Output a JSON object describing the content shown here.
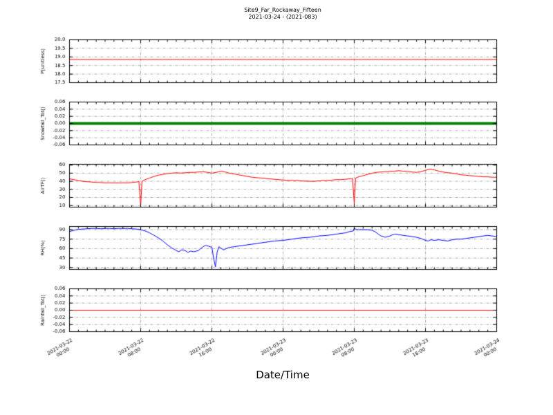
{
  "chart_data": {
    "type": "line",
    "title": "Site9_Far_Rockaway_Fifteen",
    "subtitle": "2021-03-24 - (2021-083)",
    "xlabel": "Date/Time",
    "x_unit": "hours since 2021-03-22 00:00",
    "xlim": [
      0,
      48
    ],
    "minor_tick_step": 1,
    "grid": true,
    "legend": "none",
    "xticks": [
      {
        "t": 0,
        "label": "2021-03-22 00:00"
      },
      {
        "t": 8,
        "label": "2021-03-22 08:00"
      },
      {
        "t": 16,
        "label": "2021-03-22 16:00"
      },
      {
        "t": 24,
        "label": "2021-03-23 00:00"
      },
      {
        "t": 32,
        "label": "2021-03-23 08:00"
      },
      {
        "t": 40,
        "label": "2021-03-23 16:00"
      },
      {
        "t": 48,
        "label": "2021-03-24 00:00"
      }
    ],
    "panels": [
      {
        "ylabel": "P(unitless)",
        "ylim": [
          17.5,
          20.0
        ],
        "yticks": [
          {
            "v": 20.0,
            "label": "20.0"
          },
          {
            "v": 19.5,
            "label": "19.5"
          },
          {
            "v": 19.0,
            "label": "19.0"
          },
          {
            "v": 18.5,
            "label": "18.5"
          },
          {
            "v": 18.0,
            "label": "18.0"
          },
          {
            "v": 17.5,
            "label": "17.5"
          }
        ],
        "series": [
          {
            "name": "P",
            "color": "#ff0000",
            "line_width": 1,
            "points": [
              [
                0,
                18.85
              ],
              [
                48,
                18.85
              ]
            ]
          }
        ]
      },
      {
        "ylabel": "Snowfall_Tot()",
        "ylim": [
          -0.06,
          0.06
        ],
        "yticks": [
          {
            "v": 0.06,
            "label": "0.06"
          },
          {
            "v": 0.04,
            "label": "0.04"
          },
          {
            "v": 0.02,
            "label": "0.02"
          },
          {
            "v": 0.0,
            "label": "0.00"
          },
          {
            "v": -0.02,
            "label": "-0.02"
          },
          {
            "v": -0.04,
            "label": "-0.04"
          },
          {
            "v": -0.06,
            "label": "-0.06"
          }
        ],
        "series": [
          {
            "name": "Snowfall_Tot",
            "color": "#008000",
            "line_width": 4,
            "points": [
              [
                0,
                0.0
              ],
              [
                48,
                0.0
              ]
            ]
          }
        ]
      },
      {
        "ylabel": "AirTF()",
        "ylim": [
          8,
          61
        ],
        "yticks": [
          {
            "v": 60,
            "label": "60"
          },
          {
            "v": 50,
            "label": "50"
          },
          {
            "v": 40,
            "label": "40"
          },
          {
            "v": 30,
            "label": "30"
          },
          {
            "v": 20,
            "label": "20"
          },
          {
            "v": 10,
            "label": "10"
          }
        ],
        "series": [
          {
            "name": "AirTF",
            "color": "#ff0000",
            "line_width": 1,
            "points": [
              [
                0,
                43
              ],
              [
                0.5,
                42
              ],
              [
                1,
                41
              ],
              [
                1.5,
                40
              ],
              [
                2,
                39.5
              ],
              [
                2.5,
                39
              ],
              [
                3,
                38.5
              ],
              [
                3.5,
                38.5
              ],
              [
                4,
                38
              ],
              [
                4.5,
                38
              ],
              [
                5,
                38
              ],
              [
                5.5,
                38
              ],
              [
                6,
                38
              ],
              [
                6.5,
                38
              ],
              [
                7,
                38.5
              ],
              [
                7.5,
                39
              ],
              [
                7.8,
                39.5
              ],
              [
                8,
                10
              ],
              [
                8.15,
                40
              ],
              [
                8.5,
                42
              ],
              [
                9,
                44
              ],
              [
                9.5,
                46
              ],
              [
                10,
                47.5
              ],
              [
                10.5,
                48.5
              ],
              [
                11,
                49.5
              ],
              [
                11.5,
                50
              ],
              [
                12,
                50.5
              ],
              [
                12.5,
                50
              ],
              [
                13,
                50.5
              ],
              [
                13.5,
                51
              ],
              [
                14,
                51
              ],
              [
                14.5,
                51.5
              ],
              [
                15,
                52
              ],
              [
                15.5,
                51
              ],
              [
                16,
                50
              ],
              [
                16.5,
                51
              ],
              [
                17,
                52.5
              ],
              [
                17.5,
                51.5
              ],
              [
                18,
                50
              ],
              [
                18.5,
                49
              ],
              [
                19,
                48
              ],
              [
                19.5,
                47
              ],
              [
                20,
                46
              ],
              [
                20.5,
                45
              ],
              [
                21,
                44.5
              ],
              [
                21.5,
                44
              ],
              [
                22,
                43.5
              ],
              [
                22.5,
                43
              ],
              [
                23,
                42.5
              ],
              [
                23.5,
                42
              ],
              [
                24,
                41.5
              ],
              [
                25,
                41
              ],
              [
                26,
                40.5
              ],
              [
                27,
                40
              ],
              [
                27.5,
                40
              ],
              [
                28,
                40.5
              ],
              [
                28.5,
                41
              ],
              [
                29,
                41
              ],
              [
                29.5,
                41.5
              ],
              [
                30,
                42
              ],
              [
                30.5,
                42
              ],
              [
                31,
                42.5
              ],
              [
                31.5,
                43
              ],
              [
                31.8,
                43.5
              ],
              [
                32,
                12
              ],
              [
                32.15,
                44
              ],
              [
                32.5,
                45.5
              ],
              [
                33,
                47
              ],
              [
                33.5,
                48.5
              ],
              [
                34,
                50
              ],
              [
                34.5,
                51
              ],
              [
                35,
                51.5
              ],
              [
                35.5,
                52
              ],
              [
                36,
                52
              ],
              [
                36.5,
                52.5
              ],
              [
                37,
                53
              ],
              [
                37.5,
                52.5
              ],
              [
                38,
                52
              ],
              [
                38.5,
                51.5
              ],
              [
                39,
                51
              ],
              [
                39.5,
                52
              ],
              [
                40,
                53.5
              ],
              [
                40.5,
                55
              ],
              [
                41,
                54
              ],
              [
                41.5,
                52.5
              ],
              [
                42,
                51.5
              ],
              [
                42.5,
                50.5
              ],
              [
                43,
                50
              ],
              [
                43.5,
                49
              ],
              [
                44,
                48
              ],
              [
                44.5,
                47.5
              ],
              [
                45,
                47
              ],
              [
                45.5,
                46.5
              ],
              [
                46,
                46
              ],
              [
                46.5,
                45.5
              ],
              [
                47,
                45.5
              ],
              [
                47.5,
                45
              ],
              [
                48,
                45
              ]
            ]
          }
        ]
      },
      {
        "ylabel": "RH(%)",
        "ylim": [
          27,
          95
        ],
        "yticks": [
          {
            "v": 90,
            "label": "90"
          },
          {
            "v": 75,
            "label": "75"
          },
          {
            "v": 60,
            "label": "60"
          },
          {
            "v": 45,
            "label": "45"
          },
          {
            "v": 30,
            "label": "30"
          }
        ],
        "series": [
          {
            "name": "RH",
            "color": "#0000ff",
            "line_width": 1,
            "points": [
              [
                0,
                87
              ],
              [
                0.5,
                89
              ],
              [
                1,
                90.5
              ],
              [
                1.5,
                91
              ],
              [
                2,
                91.5
              ],
              [
                2.5,
                92
              ],
              [
                3,
                92
              ],
              [
                3.5,
                91.5
              ],
              [
                4,
                92
              ],
              [
                4.5,
                92
              ],
              [
                5,
                91.5
              ],
              [
                5.5,
                92
              ],
              [
                6,
                92
              ],
              [
                6.5,
                92
              ],
              [
                7,
                91.5
              ],
              [
                7.5,
                91
              ],
              [
                8,
                90
              ],
              [
                8.5,
                88
              ],
              [
                9,
                85
              ],
              [
                9.5,
                81
              ],
              [
                10,
                77
              ],
              [
                10.5,
                72
              ],
              [
                11,
                66
              ],
              [
                11.5,
                61
              ],
              [
                12,
                57
              ],
              [
                12.3,
                55
              ],
              [
                12.6,
                58
              ],
              [
                13,
                57
              ],
              [
                13.3,
                54
              ],
              [
                13.6,
                56
              ],
              [
                14,
                55
              ],
              [
                14.5,
                57
              ],
              [
                15,
                63
              ],
              [
                15.3,
                65
              ],
              [
                15.6,
                64
              ],
              [
                16,
                62
              ],
              [
                16.2,
                45
              ],
              [
                16.4,
                31
              ],
              [
                16.6,
                55
              ],
              [
                16.8,
                63
              ],
              [
                17,
                61
              ],
              [
                17.3,
                58
              ],
              [
                17.6,
                60
              ],
              [
                18,
                62
              ],
              [
                18.5,
                63
              ],
              [
                19,
                64
              ],
              [
                19.5,
                65
              ],
              [
                20,
                66
              ],
              [
                21,
                68
              ],
              [
                22,
                70
              ],
              [
                23,
                72
              ],
              [
                24,
                73
              ],
              [
                25,
                75
              ],
              [
                26,
                77
              ],
              [
                27,
                78
              ],
              [
                28,
                80
              ],
              [
                29,
                81
              ],
              [
                30,
                83
              ],
              [
                31,
                85
              ],
              [
                31.5,
                87
              ],
              [
                31.9,
                88
              ],
              [
                32,
                93
              ],
              [
                32.2,
                90
              ],
              [
                33,
                90
              ],
              [
                33.5,
                90
              ],
              [
                34,
                89
              ],
              [
                34.3,
                87
              ],
              [
                34.6,
                84
              ],
              [
                35,
                80
              ],
              [
                35.5,
                78
              ],
              [
                36,
                80
              ],
              [
                36.3,
                82
              ],
              [
                36.6,
                83
              ],
              [
                37,
                82
              ],
              [
                37.5,
                81
              ],
              [
                38,
                80
              ],
              [
                38.5,
                79
              ],
              [
                39,
                78
              ],
              [
                39.5,
                76
              ],
              [
                40,
                73
              ],
              [
                40.3,
                72
              ],
              [
                40.6,
                74
              ],
              [
                41,
                73
              ],
              [
                41.5,
                74
              ],
              [
                42,
                73
              ],
              [
                42.5,
                72
              ],
              [
                43,
                74
              ],
              [
                43.5,
                75
              ],
              [
                44,
                75
              ],
              [
                44.5,
                76
              ],
              [
                45,
                77
              ],
              [
                45.5,
                78
              ],
              [
                46,
                79
              ],
              [
                46.5,
                80
              ],
              [
                47,
                81
              ],
              [
                47.5,
                80
              ],
              [
                48,
                79
              ]
            ]
          }
        ]
      },
      {
        "ylabel": "Rainfall_Tot()",
        "ylim": [
          -0.06,
          0.06
        ],
        "yticks": [
          {
            "v": 0.06,
            "label": "0.06"
          },
          {
            "v": 0.04,
            "label": "0.04"
          },
          {
            "v": 0.02,
            "label": "0.02"
          },
          {
            "v": 0.0,
            "label": "0.00"
          },
          {
            "v": -0.02,
            "label": "-0.02"
          },
          {
            "v": -0.04,
            "label": "-0.04"
          },
          {
            "v": -0.06,
            "label": "-0.06"
          }
        ],
        "series": [
          {
            "name": "Rainfall_Tot",
            "color": "#ff0000",
            "line_width": 1,
            "points": [
              [
                0,
                0.0
              ],
              [
                48,
                0.0
              ]
            ]
          }
        ]
      }
    ]
  }
}
